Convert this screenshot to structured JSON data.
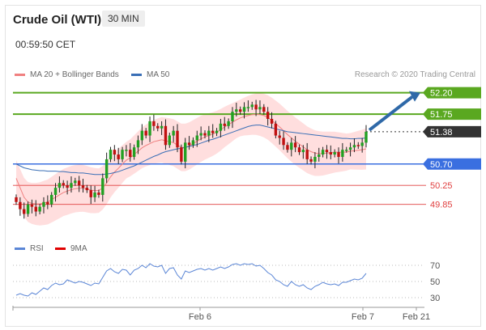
{
  "header": {
    "title": "Crude Oil (WTI)",
    "interval": "30 MIN",
    "time": "00:59:50 CET",
    "credit": "Research © 2020 Trading Central"
  },
  "legend_main": [
    {
      "label": "MA 20 + Bollinger Bands",
      "color": "#f08080"
    },
    {
      "label": "MA 50",
      "color": "#3a6fb6"
    }
  ],
  "legend_rsi": [
    {
      "label": "RSI",
      "color": "#5b86d6"
    },
    {
      "label": "9MA",
      "color": "#e00000"
    }
  ],
  "colors": {
    "up": "#22a022",
    "down": "#c01010",
    "band": "#ffd8d8",
    "resistance": "#5aa820",
    "pivot": "#3a6fe0",
    "support": "#e04040",
    "last": "#333333",
    "arrow": "#2f69a8"
  },
  "chart_data": [
    {
      "type": "candlestick",
      "title": "Crude Oil (WTI)",
      "x_labels": [
        "Feb 6",
        "Feb 7",
        "Feb 21"
      ],
      "ylim": [
        49.3,
        52.45
      ],
      "levels": [
        {
          "value": 52.2,
          "label": "52.20",
          "kind": "resistance"
        },
        {
          "value": 51.75,
          "label": "51.75",
          "kind": "resistance"
        },
        {
          "value": 51.38,
          "label": "51.38",
          "kind": "last"
        },
        {
          "value": 50.7,
          "label": "50.70",
          "kind": "pivot"
        },
        {
          "value": 50.25,
          "label": "50.25",
          "kind": "support"
        },
        {
          "value": 49.85,
          "label": "49.85",
          "kind": "support"
        }
      ],
      "close": [
        49.9,
        49.75,
        49.65,
        49.85,
        49.8,
        49.7,
        49.8,
        49.9,
        49.85,
        50.05,
        50.2,
        50.3,
        50.25,
        50.2,
        50.3,
        50.35,
        50.25,
        50.2,
        50.15,
        50.0,
        50.1,
        50.05,
        50.4,
        50.8,
        51.0,
        50.9,
        50.8,
        51.0,
        51.0,
        50.85,
        51.05,
        51.2,
        51.4,
        51.3,
        51.6,
        51.5,
        51.45,
        51.5,
        51.1,
        51.3,
        51.4,
        51.05,
        50.75,
        51.15,
        51.1,
        51.2,
        51.3,
        51.35,
        51.3,
        51.4,
        51.35,
        51.4,
        51.55,
        51.5,
        51.6,
        51.8,
        51.85,
        51.8,
        51.9,
        51.9,
        51.95,
        51.85,
        51.9,
        51.8,
        51.65,
        51.55,
        51.3,
        51.25,
        51.1,
        51.0,
        51.15,
        51.05,
        50.95,
        51.0,
        50.8,
        50.75,
        50.85,
        50.9,
        51.0,
        50.95,
        50.9,
        50.95,
        50.85,
        51.0,
        51.0,
        51.05,
        51.1,
        51.08,
        51.15,
        51.38
      ],
      "ma20": [
        50.4,
        50.2,
        50.0,
        49.9,
        49.87,
        49.86,
        49.86,
        49.88,
        49.9,
        49.95,
        50.0,
        50.05,
        50.1,
        50.13,
        50.16,
        50.18,
        50.19,
        50.19,
        50.17,
        50.15,
        50.14,
        50.14,
        50.2,
        50.3,
        50.43,
        50.53,
        50.61,
        50.7,
        50.78,
        50.83,
        50.9,
        50.97,
        51.04,
        51.09,
        51.13,
        51.17,
        51.19,
        51.21,
        51.19,
        51.17,
        51.15,
        51.1,
        51.05,
        51.05,
        51.08,
        51.13,
        51.18,
        51.23,
        51.27,
        51.3,
        51.33,
        51.37,
        51.42,
        51.48,
        51.53,
        51.58,
        51.63,
        51.67,
        51.7,
        51.72,
        51.74,
        51.75,
        51.74,
        51.72,
        51.68,
        51.62,
        51.55,
        51.48,
        51.4,
        51.32,
        51.25,
        51.18,
        51.12,
        51.06,
        51.0,
        50.96,
        50.93,
        50.92,
        50.92,
        50.93,
        50.94,
        50.95,
        50.95,
        50.95,
        50.95,
        50.97,
        50.98,
        50.99,
        51.0,
        51.02
      ],
      "ma50": [
        50.7,
        50.66,
        50.62,
        50.6,
        50.58,
        50.57,
        50.56,
        50.56,
        50.55,
        50.55,
        50.55,
        50.54,
        50.54,
        50.53,
        50.52,
        50.52,
        50.51,
        50.51,
        50.5,
        50.49,
        50.48,
        50.48,
        50.48,
        50.49,
        50.5,
        50.52,
        50.54,
        50.57,
        50.6,
        50.63,
        50.66,
        50.7,
        50.74,
        50.78,
        50.82,
        50.86,
        50.89,
        50.93,
        50.96,
        50.98,
        51.0,
        51.02,
        51.03,
        51.05,
        51.07,
        51.09,
        51.11,
        51.14,
        51.17,
        51.2,
        51.22,
        51.25,
        51.28,
        51.31,
        51.34,
        51.37,
        51.4,
        51.43,
        51.46,
        51.49,
        51.51,
        51.52,
        51.52,
        51.5,
        51.48,
        51.46,
        51.44,
        51.42,
        51.4,
        51.38,
        51.37,
        51.36,
        51.35,
        51.34,
        51.33,
        51.32,
        51.31,
        51.3,
        51.29,
        51.28,
        51.27,
        51.26,
        51.25,
        51.24,
        51.24,
        51.23,
        51.23,
        51.24,
        51.24,
        51.25
      ]
    },
    {
      "type": "line",
      "title": "RSI",
      "y_ticks": [
        70,
        50,
        30
      ],
      "ylim": [
        20,
        80
      ],
      "series": [
        {
          "name": "RSI",
          "values": [
            33,
            35,
            33,
            32,
            36,
            34,
            38,
            42,
            40,
            45,
            48,
            46,
            47,
            52,
            50,
            48,
            50,
            49,
            47,
            45,
            48,
            47,
            55,
            63,
            66,
            62,
            60,
            65,
            64,
            58,
            64,
            66,
            70,
            67,
            72,
            69,
            68,
            70,
            60,
            66,
            67,
            58,
            53,
            63,
            61,
            63,
            65,
            66,
            64,
            66,
            64,
            66,
            68,
            66,
            68,
            71,
            72,
            70,
            72,
            71,
            72,
            69,
            70,
            66,
            61,
            58,
            52,
            50,
            46,
            44,
            50,
            46,
            44,
            46,
            42,
            40,
            44,
            46,
            49,
            47,
            46,
            47,
            45,
            49,
            49,
            51,
            53,
            52,
            54,
            60
          ]
        }
      ]
    }
  ]
}
